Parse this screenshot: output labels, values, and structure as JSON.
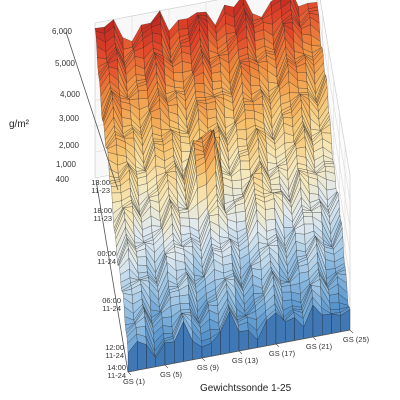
{
  "chart_data": {
    "type": "surface",
    "title": "",
    "zlabel": "g/m²",
    "xlabel": "Gewichtssonde 1-25",
    "zlim": [
      400,
      6000
    ],
    "z_ticks": [
      "400",
      "1,000",
      "2,000",
      "3,000",
      "4,000",
      "5,000",
      "6,000"
    ],
    "time_ticks": [
      {
        "time": "13:00",
        "date": "11-23"
      },
      {
        "time": "18:00",
        "date": "11-23"
      },
      {
        "time": "00:00",
        "date": "11-24"
      },
      {
        "time": "06:00",
        "date": "11-24"
      },
      {
        "time": "12:00",
        "date": "11-24"
      },
      {
        "time": "14:00",
        "date": "11-24"
      }
    ],
    "probe_ticks": [
      "GS (1)",
      "GS (5)",
      "GS (9)",
      "GS (13)",
      "GS (17)",
      "GS (21)",
      "GS (25)"
    ],
    "grid": true,
    "colormap": [
      "#2f6fb0",
      "#5b97cf",
      "#9cc4e4",
      "#dfe9ef",
      "#f7e8b8",
      "#f6c36e",
      "#ef8d3f",
      "#e0452a",
      "#b8201e"
    ],
    "mesh_color": "#1a1a1a"
  }
}
